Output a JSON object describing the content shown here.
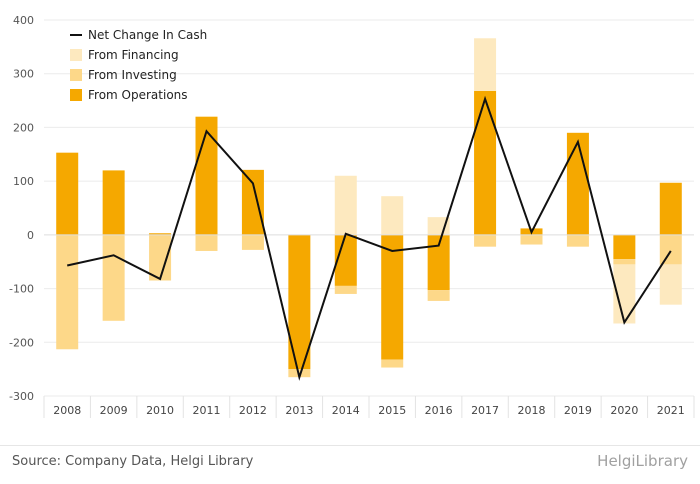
{
  "chart_data": {
    "type": "bar",
    "categories": [
      "2008",
      "2009",
      "2010",
      "2011",
      "2012",
      "2013",
      "2014",
      "2015",
      "2016",
      "2017",
      "2018",
      "2019",
      "2020",
      "2021"
    ],
    "ylim": [
      -300,
      400
    ],
    "yticks": [
      -300,
      -200,
      -100,
      0,
      100,
      200,
      300,
      400
    ],
    "series": [
      {
        "name": "From Operations",
        "color": "#f5a800",
        "values": [
          153,
          120,
          3,
          220,
          121,
          -250,
          -95,
          -232,
          -103,
          268,
          12,
          190,
          -45,
          97
        ]
      },
      {
        "name": "From Investing",
        "color": "#fdd889",
        "values": [
          -213,
          -160,
          -85,
          -30,
          -28,
          -15,
          -15,
          -15,
          -20,
          -22,
          -18,
          -22,
          -10,
          -55
        ]
      },
      {
        "name": "From Financing",
        "color": "#fde9bf",
        "values": [
          0,
          0,
          0,
          0,
          0,
          0,
          110,
          72,
          33,
          98,
          0,
          0,
          -110,
          -75
        ]
      },
      {
        "name": "Net Change In Cash",
        "color": "#111111",
        "type": "line",
        "values": [
          -57,
          -38,
          -82,
          193,
          96,
          -265,
          2,
          -30,
          -20,
          253,
          5,
          173,
          -163,
          -30
        ]
      }
    ],
    "legend_position": "top-left",
    "grid": true
  },
  "footer": {
    "source": "Source: Company Data, Helgi Library",
    "brand": "HelgiLibrary"
  }
}
